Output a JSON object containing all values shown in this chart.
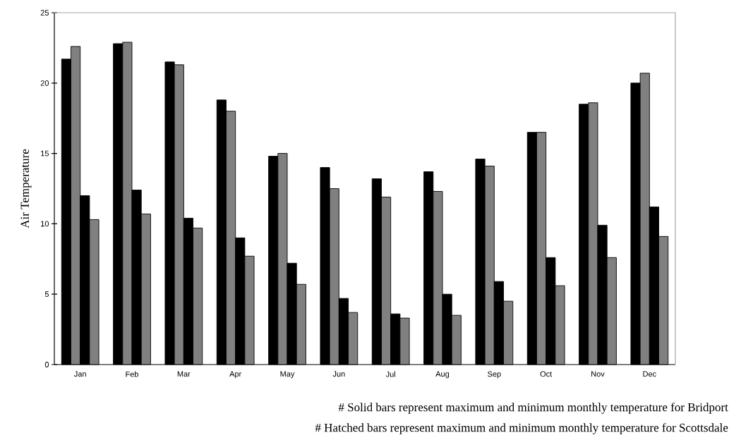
{
  "chart_data": {
    "type": "bar",
    "ylabel": "Air Temperature",
    "categories": [
      "Jan",
      "Feb",
      "Mar",
      "Apr",
      "May",
      "Jun",
      "Jul",
      "Aug",
      "Sep",
      "Oct",
      "Nov",
      "Dec"
    ],
    "series": [
      {
        "color": "#000000",
        "values": [
          21.7,
          22.8,
          21.5,
          18.8,
          14.8,
          14.0,
          13.2,
          13.7,
          14.6,
          16.5,
          18.5,
          20.0
        ]
      },
      {
        "color": "#808080",
        "values": [
          22.6,
          22.9,
          21.3,
          18.0,
          15.0,
          12.5,
          11.9,
          12.3,
          14.1,
          16.5,
          18.6,
          20.7
        ]
      },
      {
        "color": "#000000",
        "values": [
          12.0,
          12.4,
          10.4,
          9.0,
          7.2,
          4.7,
          3.6,
          5.0,
          5.9,
          7.6,
          9.9,
          11.2
        ]
      },
      {
        "color": "#808080",
        "values": [
          10.3,
          10.7,
          9.7,
          7.7,
          5.7,
          3.7,
          3.3,
          3.5,
          4.5,
          5.6,
          7.6,
          9.1
        ]
      }
    ],
    "ylim": [
      0,
      25
    ],
    "yticks": [
      0,
      5,
      10,
      15,
      20,
      25
    ],
    "annotations": [
      "# Solid bars represent maximum and minimum monthly temperature for Bridport",
      "# Hatched bars represent maximum and minimum monthly temperature for Scottsdale"
    ]
  }
}
